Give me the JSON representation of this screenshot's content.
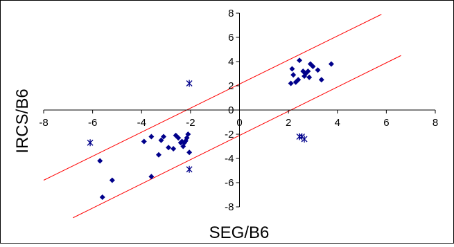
{
  "chart_data": {
    "type": "scatter",
    "xlabel": "SEG/B6",
    "ylabel": "IRCS/B6",
    "xlim": [
      -8,
      8
    ],
    "ylim": [
      -8,
      8
    ],
    "xticks": [
      "-8",
      "-6",
      "-4",
      "-2",
      "0",
      "2",
      "4",
      "6",
      "8"
    ],
    "yticks": [
      "-8",
      "-6",
      "-4",
      "-2",
      "0",
      "2",
      "4",
      "6",
      "8"
    ],
    "grid": false,
    "legend": "none",
    "series": [
      {
        "marker": "diamond",
        "color": "#00008B",
        "points": [
          [
            -5.7,
            -4.2
          ],
          [
            -5.6,
            -7.2
          ],
          [
            -5.2,
            -5.8
          ],
          [
            -3.9,
            -2.6
          ],
          [
            -3.6,
            -2.2
          ],
          [
            -3.6,
            -5.5
          ],
          [
            -3.3,
            -3.7
          ],
          [
            -3.2,
            -2.5
          ],
          [
            -3.1,
            -2.2
          ],
          [
            -2.9,
            -3.1
          ],
          [
            -2.7,
            -3.2
          ],
          [
            -2.6,
            -2.1
          ],
          [
            -2.5,
            -2.3
          ],
          [
            -2.4,
            -2.7
          ],
          [
            -2.35,
            -2.6
          ],
          [
            -2.3,
            -3.0
          ],
          [
            -2.25,
            -2.7
          ],
          [
            -2.2,
            -2.55
          ],
          [
            -2.15,
            -2.3
          ],
          [
            -2.1,
            -2.0
          ],
          [
            -2.05,
            -3.5
          ],
          [
            2.1,
            2.2
          ],
          [
            2.15,
            3.4
          ],
          [
            2.2,
            2.9
          ],
          [
            2.3,
            2.3
          ],
          [
            2.4,
            2.5
          ],
          [
            2.45,
            4.1
          ],
          [
            2.6,
            3.2
          ],
          [
            2.65,
            2.8
          ],
          [
            2.7,
            3.0
          ],
          [
            2.8,
            3.2
          ],
          [
            2.85,
            2.7
          ],
          [
            2.9,
            3.8
          ],
          [
            3.0,
            3.6
          ],
          [
            3.2,
            3.3
          ],
          [
            3.35,
            2.5
          ],
          [
            3.75,
            3.8
          ]
        ]
      },
      {
        "marker": "star",
        "color": "#00008B",
        "points": [
          [
            -6.1,
            -2.7
          ],
          [
            -2.05,
            2.2
          ],
          [
            -2.05,
            -4.9
          ],
          [
            2.45,
            -2.2
          ],
          [
            2.55,
            -2.2
          ],
          [
            2.65,
            -2.4
          ]
        ]
      }
    ],
    "lines": [
      {
        "color": "#FF0000",
        "from": [
          -8.0,
          -5.8
        ],
        "to": [
          5.8,
          7.9
        ]
      },
      {
        "color": "#FF0000",
        "from": [
          -6.8,
          -8.9
        ],
        "to": [
          6.6,
          4.5
        ]
      }
    ]
  }
}
